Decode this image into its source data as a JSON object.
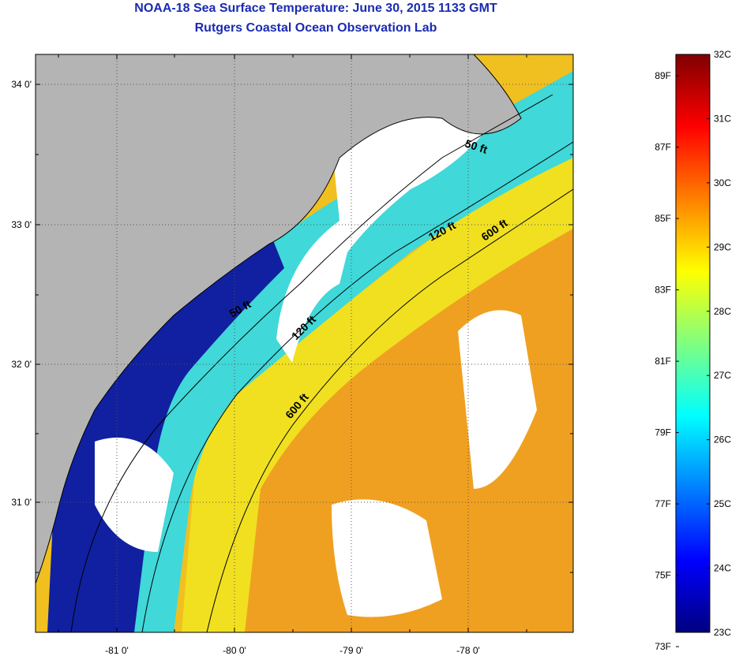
{
  "header": {
    "title": "NOAA-18 Sea Surface Temperature:  June 30, 2015 1133 GMT",
    "subtitle": "Rutgers Coastal Ocean Observation Lab"
  },
  "map": {
    "lon_labels": [
      "-81 0'",
      "-80 0'",
      "-79 0'",
      "-78 0'"
    ],
    "lat_labels": [
      "34 0'",
      "33 0'",
      "32 0'",
      "31 0'"
    ],
    "contours": [
      {
        "label": "50 ft"
      },
      {
        "label": "50 ft"
      },
      {
        "label": "120 ft"
      },
      {
        "label": "120 ft"
      },
      {
        "label": "600 ft"
      },
      {
        "label": "600 ft"
      }
    ],
    "colors": {
      "land": "#b4b4b4",
      "cloud": "#ffffff",
      "cold": "#1020a0",
      "cyan": "#40d8d8",
      "yellow": "#f0e020",
      "orange": "#f0a020",
      "coast": "#000000"
    }
  },
  "colorbar": {
    "fahrenheit_labels": [
      "89F",
      "87F",
      "85F",
      "83F",
      "81F",
      "79F",
      "77F",
      "75F",
      "73F"
    ],
    "celsius_labels": [
      "32C",
      "31C",
      "30C",
      "29C",
      "28C",
      "27C",
      "26C",
      "25C",
      "24C",
      "23C"
    ],
    "range_c": [
      23,
      32
    ],
    "range_f": [
      73,
      89
    ],
    "stops": [
      "#00007f",
      "#0000ff",
      "#0080ff",
      "#00ffff",
      "#80ff80",
      "#ffff00",
      "#ff8000",
      "#ff0000",
      "#7f0000"
    ]
  }
}
